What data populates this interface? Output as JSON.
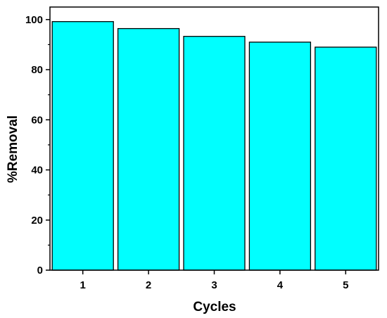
{
  "chart_data": {
    "type": "bar",
    "title": "",
    "xlabel": "Cycles",
    "ylabel": "%Removal",
    "categories": [
      "1",
      "2",
      "3",
      "4",
      "5"
    ],
    "values": [
      99.2,
      96.4,
      93.3,
      91.0,
      89.0
    ],
    "ylim": [
      0,
      105
    ],
    "yticks": [
      "0",
      "20",
      "40",
      "60",
      "80",
      "100"
    ],
    "grid": false,
    "legend": "none",
    "colors": {
      "bar_fill": "#00ffff",
      "bar_stroke": "#000000",
      "axis": "#000000"
    }
  }
}
